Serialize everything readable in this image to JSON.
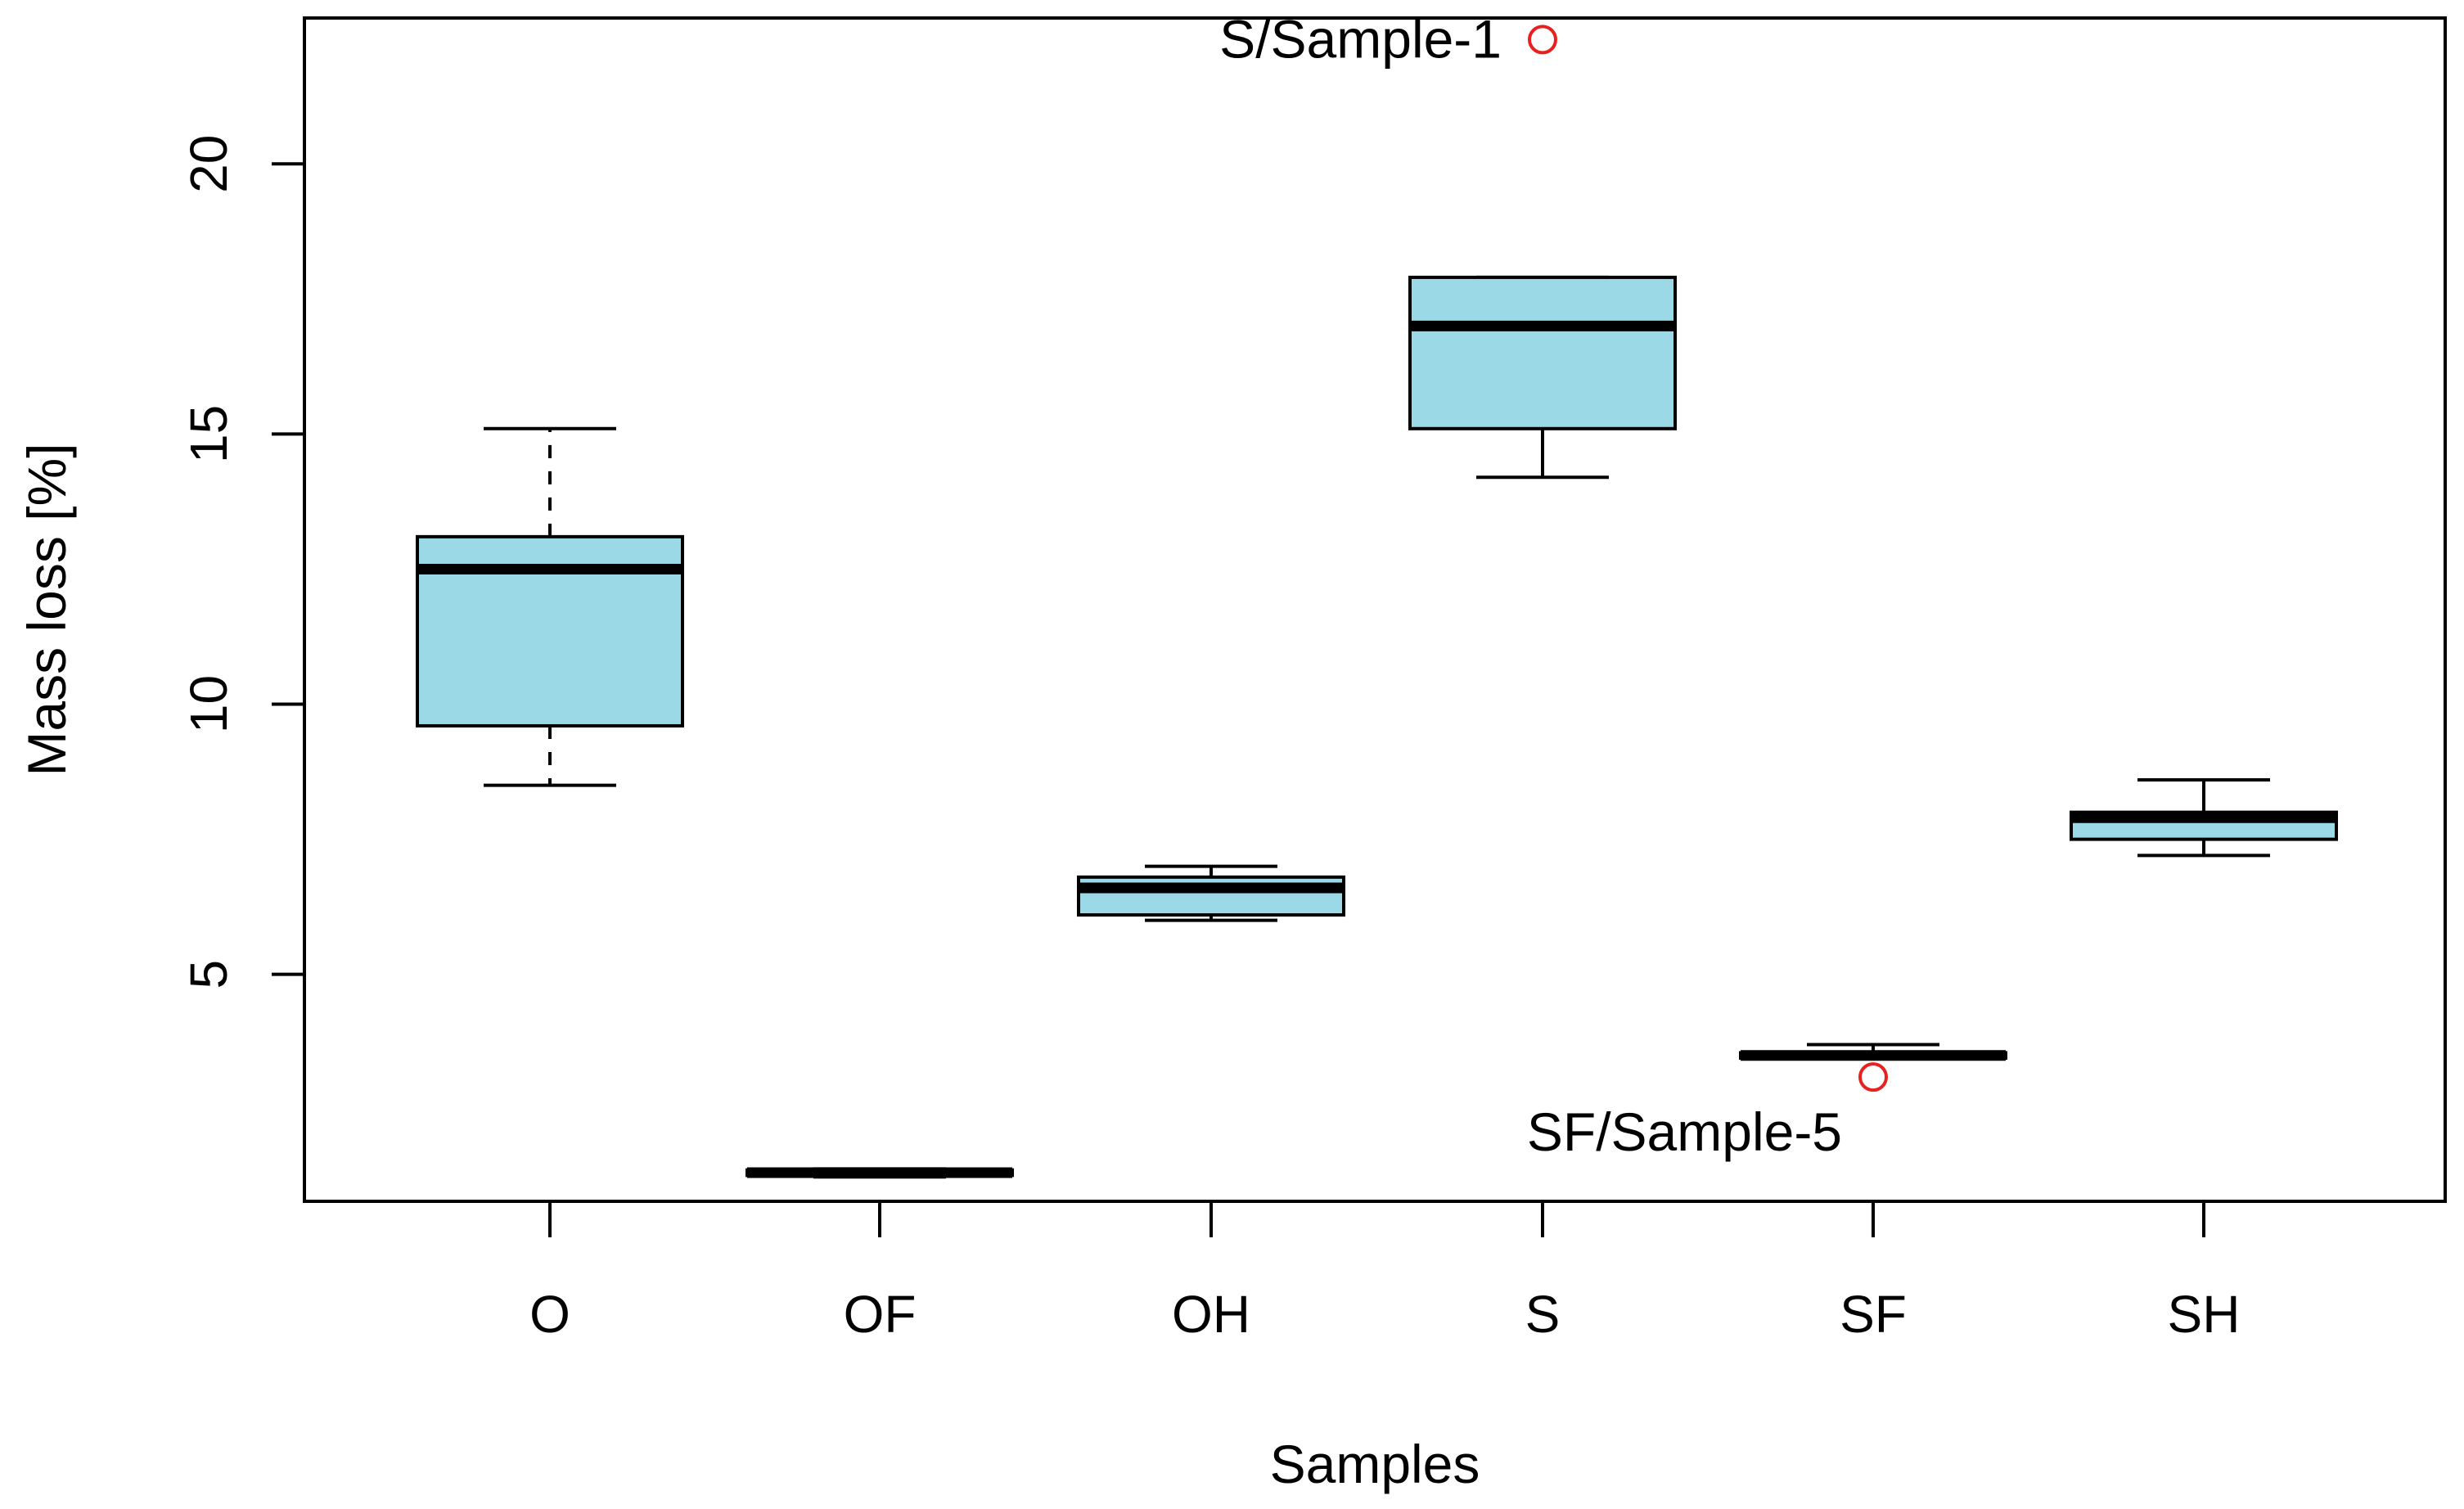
{
  "chart_data": {
    "type": "box",
    "title": "",
    "xlabel": "Samples",
    "ylabel": "Mass loss [%]",
    "ylim": [
      0.8,
      22.7
    ],
    "yticks": [
      5,
      10,
      15,
      20
    ],
    "categories": [
      "O",
      "OF",
      "OH",
      "S",
      "SF",
      "SH"
    ],
    "box_color": "#9ad9e5",
    "outlier_color": "#e8211f",
    "boxes": [
      {
        "category": "O",
        "whisker_low": 8.5,
        "q1": 9.6,
        "median": 12.5,
        "q3": 13.1,
        "whisker_high": 15.1,
        "whisker_style": "dashed"
      },
      {
        "category": "OF",
        "whisker_low": 1.25,
        "q1": 1.28,
        "median": 1.33,
        "q3": 1.38,
        "whisker_high": 1.4,
        "whisker_style": "solid"
      },
      {
        "category": "OH",
        "whisker_low": 6.0,
        "q1": 6.1,
        "median": 6.6,
        "q3": 6.8,
        "whisker_high": 7.0,
        "whisker_style": "solid"
      },
      {
        "category": "S",
        "whisker_low": 14.2,
        "q1": 15.1,
        "median": 17.0,
        "q3": 17.9,
        "whisker_high": 17.9,
        "whisker_style": "solid"
      },
      {
        "category": "SF",
        "whisker_low": 3.45,
        "q1": 3.45,
        "median": 3.5,
        "q3": 3.55,
        "whisker_high": 3.7,
        "whisker_style": "solid"
      },
      {
        "category": "SH",
        "whisker_low": 7.2,
        "q1": 7.5,
        "median": 7.9,
        "q3": 8.0,
        "whisker_high": 8.6,
        "whisker_style": "solid"
      }
    ],
    "outliers": [
      {
        "category": "S",
        "value": 22.3,
        "label": "S/Sample-1",
        "label_side": "left"
      },
      {
        "category": "SF",
        "value": 3.1,
        "label": "SF/Sample-5",
        "label_side": "below-left"
      }
    ]
  }
}
